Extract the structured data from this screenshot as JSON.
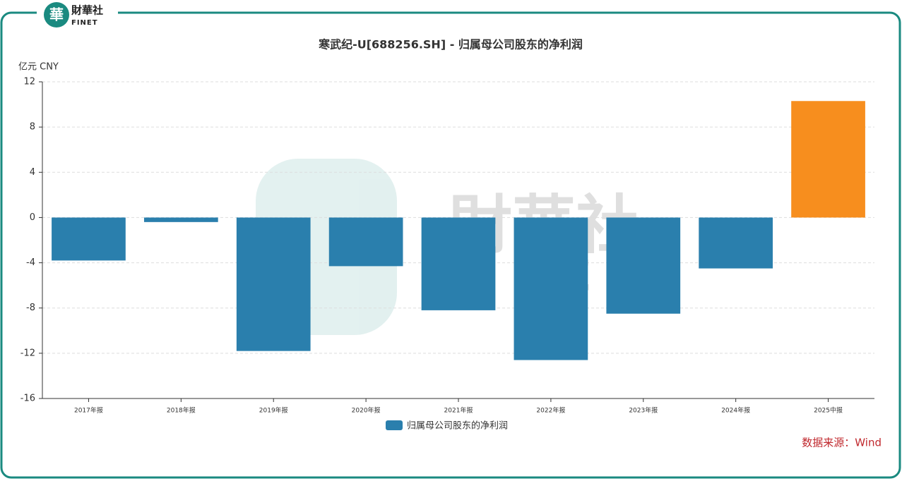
{
  "logo": {
    "name": "財華社",
    "en": "FINET"
  },
  "source": "数据来源：Wind",
  "chart_data": {
    "type": "bar",
    "title": "寒武纪-U[688256.SH] - 归属母公司股东的净利润",
    "y_unit": "亿元  CNY",
    "categories": [
      "2017年报",
      "2018年报",
      "2019年报",
      "2020年报",
      "2021年报",
      "2022年报",
      "2023年报",
      "2024年报",
      "2025中报"
    ],
    "series": [
      {
        "name": "归属母公司股东的净利润",
        "color": "#2a7fad",
        "values": [
          -3.8,
          -0.4,
          -11.8,
          -4.3,
          -8.2,
          -12.6,
          -8.5,
          -4.5,
          10.3
        ]
      }
    ],
    "bar_colors": [
      "#2a7fad",
      "#2a7fad",
      "#2a7fad",
      "#2a7fad",
      "#2a7fad",
      "#2a7fad",
      "#2a7fad",
      "#2a7fad",
      "#f78e1e"
    ],
    "ylim": [
      -16,
      12
    ],
    "yticks": [
      -16,
      -12,
      -8,
      -4,
      0,
      4,
      8,
      12
    ],
    "grid": true
  }
}
